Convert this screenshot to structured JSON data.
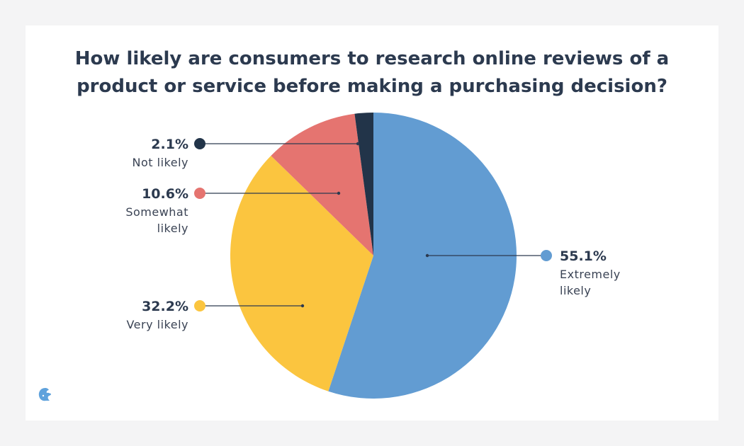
{
  "chart_data": {
    "type": "pie",
    "title": "How likely are consumers to research online reviews of a product or service before making a purchasing decision?",
    "slices": [
      {
        "label": "Extremely likely",
        "value": 55.1,
        "value_label": "55.1%",
        "label_lines": [
          "Extremely",
          "likely"
        ],
        "color": "#629cd2"
      },
      {
        "label": "Very likely",
        "value": 32.2,
        "value_label": "32.2%",
        "label_lines": [
          "Very likely"
        ],
        "color": "#fbc53f"
      },
      {
        "label": "Somewhat likely",
        "value": 10.6,
        "value_label": "10.6%",
        "label_lines": [
          "Somewhat",
          "likely"
        ],
        "color": "#e57470"
      },
      {
        "label": "Not likely",
        "value": 2.1,
        "value_label": "2.1%",
        "label_lines": [
          "Not likely"
        ],
        "color": "#223449"
      }
    ],
    "start_angle": "12 o'clock",
    "direction": "clockwise"
  },
  "title_lines": [
    "How likely are consumers to research online reviews of a",
    "product or service before making a purchasing decision?"
  ],
  "icons": {
    "logo": "cat-logo-icon"
  }
}
